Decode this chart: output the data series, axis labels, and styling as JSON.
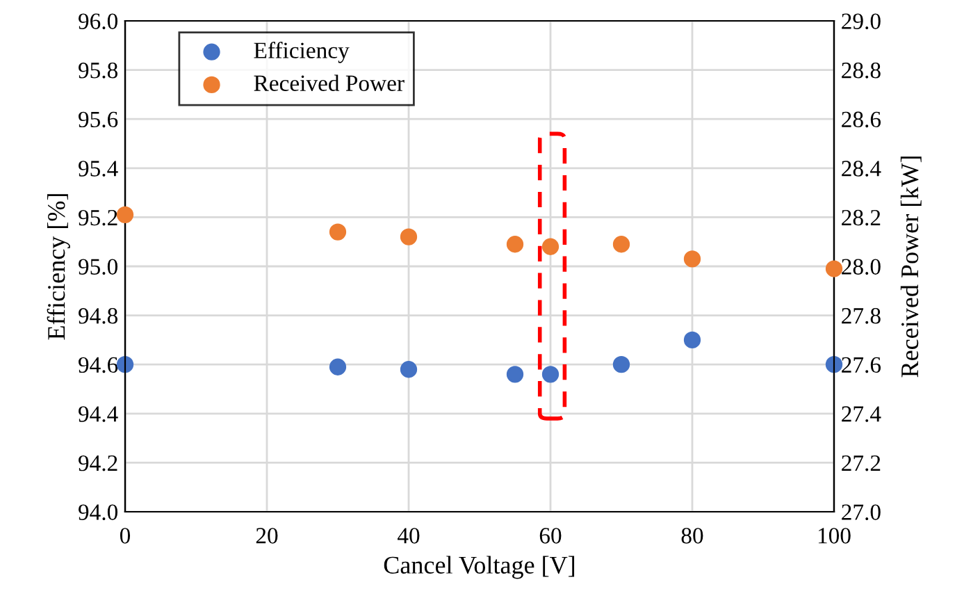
{
  "chart_data": {
    "type": "scatter",
    "xlabel": "Cancel Voltage [V]",
    "ylabel": "Efficiency [%]",
    "y2label": "Received Power [kW]",
    "x": [
      0,
      30,
      40,
      55,
      60,
      70,
      80,
      100
    ],
    "series": [
      {
        "name": "Efficiency",
        "color": "#4472c4",
        "values": [
          94.6,
          94.59,
          94.58,
          94.56,
          94.56,
          94.6,
          94.7,
          94.6
        ]
      },
      {
        "name": "Received Power",
        "color": "#ed7d31",
        "axis": "y2",
        "values": [
          28.21,
          28.14,
          28.12,
          28.09,
          28.08,
          28.09,
          28.03,
          27.99
        ]
      }
    ],
    "xlim": [
      0,
      100
    ],
    "xticks": [
      0,
      20,
      40,
      60,
      80,
      100
    ],
    "ylim": [
      94.0,
      96.0
    ],
    "yticks": [
      {
        "value": 94,
        "label": "94.0"
      },
      {
        "value": 94.2,
        "label": "94.2"
      },
      {
        "value": 94.4,
        "label": "94.4"
      },
      {
        "value": 94.6,
        "label": "94.6"
      },
      {
        "value": 94.8,
        "label": "94.8"
      },
      {
        "value": 95,
        "label": "95.0"
      },
      {
        "value": 95.2,
        "label": "95.2"
      },
      {
        "value": 95.4,
        "label": "95.4"
      },
      {
        "value": 95.6,
        "label": "95.6"
      },
      {
        "value": 95.8,
        "label": "95.8"
      },
      {
        "value": 96,
        "label": "96.0"
      }
    ],
    "y2lim": [
      27.0,
      29.0
    ],
    "y2ticks": [
      {
        "value": 27,
        "label": "27.0"
      },
      {
        "value": 27.2,
        "label": "27.2"
      },
      {
        "value": 27.4,
        "label": "27.4"
      },
      {
        "value": 27.6,
        "label": "27.6"
      },
      {
        "value": 27.8,
        "label": "27.8"
      },
      {
        "value": 28,
        "label": "28.0"
      },
      {
        "value": 28.2,
        "label": "28.2"
      },
      {
        "value": 28.4,
        "label": "28.4"
      },
      {
        "value": 28.6,
        "label": "28.6"
      },
      {
        "value": 28.8,
        "label": "28.8"
      },
      {
        "value": 29,
        "label": "29.0"
      }
    ],
    "grid": true,
    "legend": "top left",
    "marker": "circle"
  }
}
